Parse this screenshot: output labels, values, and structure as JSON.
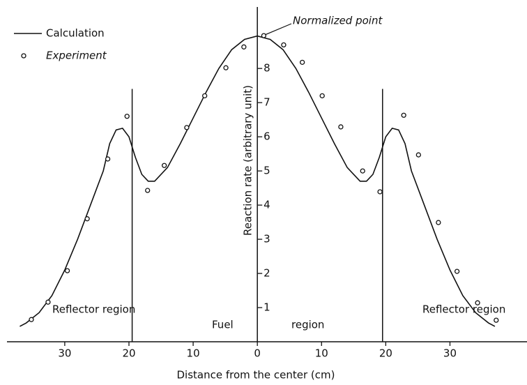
{
  "chart_data": {
    "type": "line",
    "xlabel": "Distance from the center (cm)",
    "ylabel": "Reaction rate (arbitrary unit)",
    "xlim": [
      -39,
      42
    ],
    "ylim": [
      0,
      9.8
    ],
    "xticks": [
      {
        "value": -30,
        "label": "30"
      },
      {
        "value": -20,
        "label": "20"
      },
      {
        "value": -10,
        "label": "10"
      },
      0,
      10,
      20,
      30
    ],
    "yticks": [
      1,
      2,
      3,
      4,
      5,
      6,
      7,
      8
    ],
    "region_boundaries": [
      -19.5,
      19.5
    ],
    "regions": [
      "Reflector region",
      "Fuel",
      "region",
      "Reflector region"
    ],
    "annotation": "Normalized point",
    "series": [
      {
        "name": "Calculation",
        "color": "#111111",
        "style": "line",
        "x": [
          -37,
          -36,
          -34,
          -32,
          -30,
          -28,
          -26,
          -24,
          -23,
          -22,
          -21,
          -20,
          -19,
          -18,
          -17,
          -16,
          -14,
          -12,
          -10,
          -8,
          -6,
          -4,
          -2,
          0,
          2,
          4,
          6,
          8,
          10,
          12,
          14,
          16,
          17,
          18,
          19,
          20,
          21,
          22,
          23,
          24,
          26,
          28,
          30,
          32,
          34,
          36,
          37
        ],
        "values": [
          0.45,
          0.55,
          0.85,
          1.35,
          2.1,
          3.0,
          4.0,
          5.0,
          5.8,
          6.2,
          6.25,
          6.0,
          5.4,
          4.9,
          4.7,
          4.7,
          5.1,
          5.8,
          6.55,
          7.3,
          8.0,
          8.55,
          8.85,
          8.95,
          8.85,
          8.55,
          8.0,
          7.3,
          6.55,
          5.8,
          5.1,
          4.7,
          4.7,
          4.9,
          5.4,
          6.0,
          6.25,
          6.2,
          5.8,
          5.0,
          4.0,
          3.0,
          2.1,
          1.35,
          0.85,
          0.55,
          0.45
        ]
      },
      {
        "name": "Experiment",
        "color": "#111111",
        "style": "marker",
        "x": [
          -35.2,
          -32.6,
          -29.6,
          -26.5,
          -23.3,
          -20.3,
          -17.1,
          -14.5,
          -11.0,
          -8.2,
          -4.9,
          -2.1,
          1.0,
          4.1,
          7.0,
          10.1,
          13.0,
          16.4,
          19.1,
          22.8,
          25.1,
          28.2,
          31.1,
          34.3,
          37.2
        ],
        "values": [
          0.65,
          1.16,
          2.08,
          3.6,
          5.35,
          6.6,
          4.43,
          5.16,
          6.27,
          7.2,
          8.02,
          8.63,
          8.96,
          8.69,
          8.18,
          7.2,
          6.29,
          5.0,
          4.39,
          6.63,
          5.47,
          3.49,
          2.06,
          1.14,
          0.63
        ]
      }
    ]
  }
}
